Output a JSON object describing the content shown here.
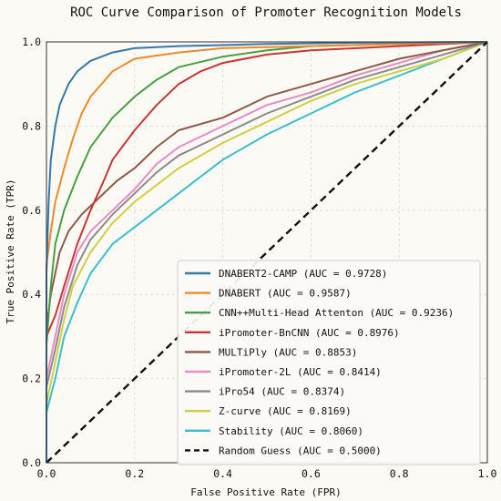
{
  "chart_data": {
    "type": "line",
    "title": "ROC Curve Comparison of Promoter Recognition Models",
    "xlabel": "False Positive Rate (FPR)",
    "ylabel": "True Positive Rate (TPR)",
    "xlim": [
      0.0,
      1.0
    ],
    "ylim": [
      0.0,
      1.0
    ],
    "xticks": [
      "0.0",
      "0.2",
      "0.4",
      "0.6",
      "0.8",
      "1.0"
    ],
    "yticks": [
      "0.0",
      "0.2",
      "0.4",
      "0.6",
      "0.8",
      "1.0"
    ],
    "grid": true,
    "legend_position": "lower-right",
    "series": [
      {
        "name": "DNABERT2-CAMP",
        "label": "DNABERT2-CAMP (AUC = 0.9728)",
        "color": "#3778a8",
        "dashed": false,
        "x": [
          0,
          0,
          0.005,
          0.01,
          0.02,
          0.03,
          0.05,
          0.07,
          0.1,
          0.15,
          0.2,
          0.3,
          0.5,
          0.7,
          1.0
        ],
        "y": [
          0,
          0.45,
          0.62,
          0.72,
          0.8,
          0.85,
          0.9,
          0.93,
          0.955,
          0.975,
          0.985,
          0.99,
          0.995,
          0.998,
          1.0
        ]
      },
      {
        "name": "DNABERT",
        "label": "DNABERT (AUC = 0.9587)",
        "color": "#ee8a2c",
        "dashed": false,
        "x": [
          0,
          0,
          0.01,
          0.02,
          0.04,
          0.06,
          0.08,
          0.1,
          0.15,
          0.2,
          0.3,
          0.4,
          0.6,
          0.8,
          1.0
        ],
        "y": [
          0,
          0.47,
          0.55,
          0.62,
          0.7,
          0.77,
          0.83,
          0.87,
          0.93,
          0.96,
          0.975,
          0.985,
          0.99,
          0.995,
          1.0
        ]
      },
      {
        "name": "CNN++Multi-Head Attenton",
        "label": "CNN++Multi-Head Attenton (AUC = 0.9236)",
        "color": "#4a9e42",
        "dashed": false,
        "x": [
          0,
          0,
          0.01,
          0.02,
          0.04,
          0.07,
          0.1,
          0.15,
          0.2,
          0.25,
          0.3,
          0.4,
          0.5,
          0.6,
          0.8,
          1.0
        ],
        "y": [
          0,
          0.28,
          0.42,
          0.52,
          0.6,
          0.68,
          0.75,
          0.82,
          0.87,
          0.91,
          0.94,
          0.965,
          0.98,
          0.99,
          0.995,
          1.0
        ]
      },
      {
        "name": "iPromoter-BnCNN",
        "label": "iPromoter-BnCNN (AUC = 0.8976)",
        "color": "#c93532",
        "dashed": false,
        "x": [
          0,
          0,
          0.02,
          0.04,
          0.07,
          0.1,
          0.13,
          0.15,
          0.2,
          0.25,
          0.3,
          0.35,
          0.4,
          0.5,
          0.6,
          0.8,
          1.0
        ],
        "y": [
          0,
          0.3,
          0.35,
          0.42,
          0.52,
          0.6,
          0.67,
          0.72,
          0.79,
          0.85,
          0.9,
          0.93,
          0.95,
          0.97,
          0.98,
          0.99,
          1.0
        ]
      },
      {
        "name": "MULTiPly",
        "label": "MULTiPly (AUC = 0.8853)",
        "color": "#8c5a4a",
        "dashed": false,
        "x": [
          0,
          0,
          0.01,
          0.03,
          0.05,
          0.08,
          0.12,
          0.16,
          0.2,
          0.25,
          0.3,
          0.4,
          0.5,
          0.6,
          0.7,
          0.8,
          0.9,
          1.0
        ],
        "y": [
          0,
          0.32,
          0.4,
          0.5,
          0.55,
          0.59,
          0.63,
          0.67,
          0.7,
          0.75,
          0.79,
          0.82,
          0.87,
          0.9,
          0.93,
          0.96,
          0.98,
          1.0
        ]
      },
      {
        "name": "iPromoter-2L",
        "label": "iPromoter-2L (AUC = 0.8414)",
        "color": "#e68bc6",
        "dashed": false,
        "x": [
          0,
          0,
          0.02,
          0.04,
          0.07,
          0.1,
          0.15,
          0.2,
          0.25,
          0.3,
          0.4,
          0.5,
          0.6,
          0.7,
          0.8,
          0.9,
          1.0
        ],
        "y": [
          0,
          0.2,
          0.3,
          0.4,
          0.5,
          0.55,
          0.6,
          0.65,
          0.71,
          0.75,
          0.8,
          0.85,
          0.88,
          0.92,
          0.95,
          0.98,
          1.0
        ]
      },
      {
        "name": "iPro54",
        "label": "iPro54 (AUC = 0.8374)",
        "color": "#8a8a8a",
        "dashed": false,
        "x": [
          0,
          0,
          0.02,
          0.04,
          0.07,
          0.1,
          0.15,
          0.2,
          0.25,
          0.3,
          0.4,
          0.5,
          0.6,
          0.7,
          0.8,
          0.9,
          1.0
        ],
        "y": [
          0,
          0.18,
          0.27,
          0.37,
          0.47,
          0.53,
          0.59,
          0.64,
          0.69,
          0.73,
          0.78,
          0.83,
          0.87,
          0.91,
          0.94,
          0.97,
          1.0
        ]
      },
      {
        "name": "Z-curve",
        "label": "Z-curve (AUC = 0.8169)",
        "color": "#cfcf45",
        "dashed": false,
        "x": [
          0,
          0,
          0.02,
          0.04,
          0.06,
          0.1,
          0.15,
          0.2,
          0.25,
          0.3,
          0.4,
          0.5,
          0.6,
          0.7,
          0.8,
          0.9,
          1.0
        ],
        "y": [
          0,
          0.14,
          0.24,
          0.34,
          0.42,
          0.5,
          0.57,
          0.62,
          0.66,
          0.7,
          0.76,
          0.81,
          0.86,
          0.9,
          0.93,
          0.96,
          1.0
        ]
      },
      {
        "name": "Stability",
        "label": "Stability (AUC = 0.8060)",
        "color": "#3cbdc9",
        "dashed": false,
        "x": [
          0,
          0,
          0.02,
          0.04,
          0.07,
          0.1,
          0.15,
          0.2,
          0.25,
          0.3,
          0.35,
          0.4,
          0.5,
          0.6,
          0.7,
          0.8,
          0.9,
          1.0
        ],
        "y": [
          0,
          0.12,
          0.2,
          0.3,
          0.38,
          0.45,
          0.52,
          0.56,
          0.6,
          0.64,
          0.68,
          0.72,
          0.78,
          0.83,
          0.88,
          0.92,
          0.96,
          1.0
        ]
      },
      {
        "name": "Random Guess",
        "label": "Random Guess (AUC = 0.5000)",
        "color": "#111111",
        "dashed": true,
        "x": [
          0,
          1
        ],
        "y": [
          0,
          1
        ]
      }
    ]
  }
}
